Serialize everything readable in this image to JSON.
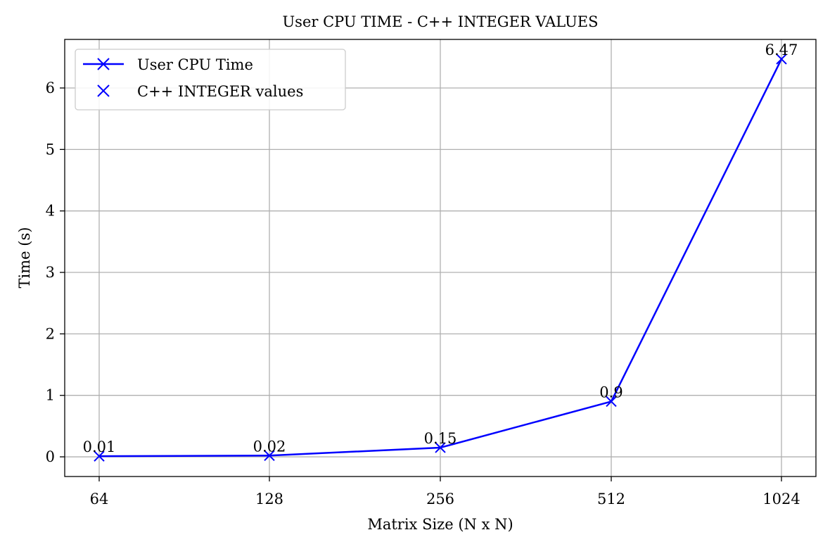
{
  "chart_data": {
    "type": "line",
    "title": "User CPU TIME - C++ INTEGER VALUES",
    "xlabel": "Matrix Size (N x N)",
    "ylabel": "Time (s)",
    "categories": [
      "64",
      "128",
      "256",
      "512",
      "1024"
    ],
    "series": [
      {
        "name": "User CPU Time",
        "values": [
          0.01,
          0.02,
          0.15,
          0.9,
          6.47
        ],
        "color": "#0000ff",
        "marker": "x",
        "line": true
      }
    ],
    "marker_legend_label": "C++ INTEGER values",
    "data_labels": [
      "0.01",
      "0.02",
      "0.15",
      "0.9",
      "6.47"
    ],
    "yticks": [
      "0",
      "1",
      "2",
      "3",
      "4",
      "5",
      "6"
    ],
    "ylim": [
      -0.32,
      6.79
    ],
    "grid": true,
    "legend_position": "top-left"
  }
}
